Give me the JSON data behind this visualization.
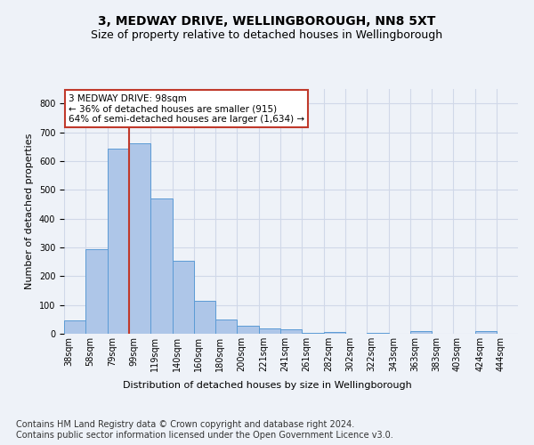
{
  "title": "3, MEDWAY DRIVE, WELLINGBOROUGH, NN8 5XT",
  "subtitle": "Size of property relative to detached houses in Wellingborough",
  "xlabel": "Distribution of detached houses by size in Wellingborough",
  "ylabel": "Number of detached properties",
  "categories": [
    "38sqm",
    "58sqm",
    "79sqm",
    "99sqm",
    "119sqm",
    "140sqm",
    "160sqm",
    "180sqm",
    "200sqm",
    "221sqm",
    "241sqm",
    "261sqm",
    "282sqm",
    "302sqm",
    "322sqm",
    "343sqm",
    "363sqm",
    "383sqm",
    "403sqm",
    "424sqm",
    "444sqm"
  ],
  "values": [
    47,
    295,
    643,
    660,
    469,
    252,
    113,
    50,
    28,
    18,
    15,
    2,
    5,
    0,
    2,
    0,
    8,
    0,
    0,
    10,
    0
  ],
  "bar_color": "#aec6e8",
  "bar_edge_color": "#5b9bd5",
  "grid_color": "#d0d8e8",
  "background_color": "#eef2f8",
  "annotation_line1": "3 MEDWAY DRIVE: 98sqm",
  "annotation_line2": "← 36% of detached houses are smaller (915)",
  "annotation_line3": "64% of semi-detached houses are larger (1,634) →",
  "vline_x_idx": 3,
  "bin_edges": [
    38,
    58,
    79,
    99,
    119,
    140,
    160,
    180,
    200,
    221,
    241,
    261,
    282,
    302,
    322,
    343,
    363,
    383,
    403,
    424,
    444,
    464
  ],
  "ylim": [
    0,
    850
  ],
  "yticks": [
    0,
    100,
    200,
    300,
    400,
    500,
    600,
    700,
    800
  ],
  "footer": "Contains HM Land Registry data © Crown copyright and database right 2024.\nContains public sector information licensed under the Open Government Licence v3.0.",
  "title_fontsize": 10,
  "subtitle_fontsize": 9,
  "axis_label_fontsize": 8,
  "tick_fontsize": 7,
  "footer_fontsize": 7,
  "annot_fontsize": 7.5
}
